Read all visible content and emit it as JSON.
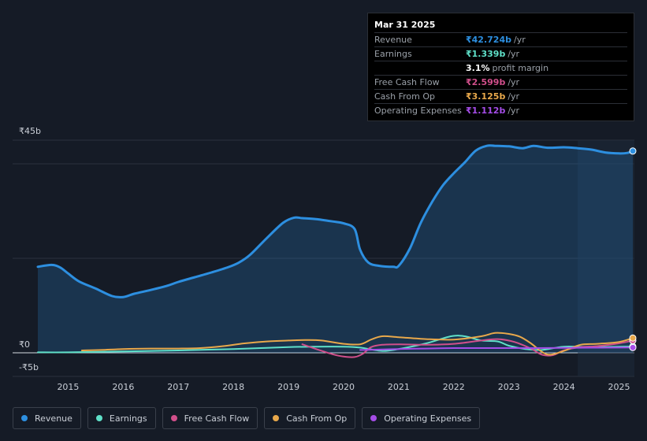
{
  "chart_data": {
    "type": "area",
    "y_unit_labels": [
      "₹45b",
      "₹0",
      "-₹5b"
    ],
    "ylim": [
      -5,
      45
    ],
    "xlim": [
      2014.45,
      2025.25
    ],
    "x_ticks": [
      "2015",
      "2016",
      "2017",
      "2018",
      "2019",
      "2020",
      "2021",
      "2022",
      "2023",
      "2024",
      "2025"
    ],
    "forecast_start": 2024.25,
    "series": [
      {
        "name": "Revenue",
        "color": "#2d8fe0",
        "fill": true,
        "x": [
          2014.45,
          2014.7,
          2014.85,
          2015.0,
          2015.2,
          2015.5,
          2015.8,
          2016.0,
          2016.2,
          2016.5,
          2016.8,
          2017.0,
          2017.3,
          2017.6,
          2017.9,
          2018.1,
          2018.3,
          2018.6,
          2018.9,
          2019.1,
          2019.25,
          2019.5,
          2019.8,
          2020.0,
          2020.2,
          2020.3,
          2020.45,
          2020.65,
          2020.9,
          2021.0,
          2021.2,
          2021.4,
          2021.6,
          2021.8,
          2022.0,
          2022.2,
          2022.4,
          2022.6,
          2022.75,
          2023.0,
          2023.25,
          2023.45,
          2023.7,
          2024.0,
          2024.25,
          2024.5,
          2024.75,
          2025.0,
          2025.15,
          2025.25
        ],
        "y": [
          18.2,
          18.6,
          18.1,
          16.8,
          15.1,
          13.6,
          12.0,
          11.8,
          12.5,
          13.3,
          14.2,
          15.0,
          16.0,
          17.0,
          18.1,
          19.1,
          20.7,
          24.2,
          27.5,
          28.6,
          28.5,
          28.3,
          27.8,
          27.4,
          26.2,
          21.8,
          19.1,
          18.4,
          18.2,
          18.4,
          22.0,
          27.5,
          31.8,
          35.4,
          38.0,
          40.3,
          42.8,
          43.8,
          43.8,
          43.7,
          43.3,
          43.8,
          43.4,
          43.5,
          43.3,
          43.0,
          42.4,
          42.2,
          42.3,
          42.7
        ]
      },
      {
        "name": "Earnings",
        "color": "#5fe0c8",
        "fill": false,
        "x": [
          2014.45,
          2015.0,
          2016.0,
          2017.0,
          2018.0,
          2019.0,
          2019.5,
          2020.0,
          2020.3,
          2020.7,
          2021.0,
          2021.5,
          2021.95,
          2022.2,
          2022.5,
          2022.8,
          2023.0,
          2023.3,
          2023.6,
          2024.0,
          2024.5,
          2025.0,
          2025.25
        ],
        "y": [
          0.1,
          0.1,
          0.3,
          0.5,
          0.8,
          1.2,
          1.3,
          1.3,
          1.1,
          0.4,
          0.8,
          2.0,
          3.5,
          3.5,
          2.6,
          2.4,
          1.5,
          0.8,
          0.6,
          1.3,
          1.2,
          1.3,
          1.339
        ]
      },
      {
        "name": "Free Cash Flow",
        "color": "#d14f8b",
        "fill": false,
        "x": [
          2019.25,
          2019.5,
          2019.8,
          2020.0,
          2020.2,
          2020.35,
          2020.5,
          2020.7,
          2021.0,
          2021.5,
          2022.0,
          2022.5,
          2022.8,
          2023.1,
          2023.4,
          2023.6,
          2023.8,
          2024.0,
          2024.3,
          2024.6,
          2025.0,
          2025.25
        ],
        "y": [
          1.8,
          0.8,
          -0.3,
          -0.8,
          -0.9,
          -0.2,
          1.2,
          1.7,
          1.8,
          1.7,
          1.9,
          2.6,
          2.9,
          2.3,
          0.9,
          -0.4,
          -0.5,
          0.5,
          1.2,
          1.4,
          2.0,
          2.599
        ]
      },
      {
        "name": "Cash From Op",
        "color": "#e8a84b",
        "fill": false,
        "x": [
          2015.25,
          2015.6,
          2016.0,
          2016.5,
          2017.0,
          2017.4,
          2017.8,
          2018.2,
          2018.6,
          2019.0,
          2019.3,
          2019.6,
          2020.0,
          2020.3,
          2020.5,
          2020.7,
          2021.0,
          2021.5,
          2022.0,
          2022.5,
          2022.75,
          2023.0,
          2023.2,
          2023.4,
          2023.6,
          2023.75,
          2024.0,
          2024.3,
          2024.6,
          2025.0,
          2025.25
        ],
        "y": [
          0.5,
          0.6,
          0.8,
          0.9,
          0.9,
          1.0,
          1.4,
          2.0,
          2.4,
          2.6,
          2.7,
          2.6,
          1.9,
          1.8,
          2.8,
          3.5,
          3.3,
          2.9,
          2.8,
          3.5,
          4.2,
          4.0,
          3.4,
          2.0,
          0.2,
          -0.4,
          0.4,
          1.7,
          1.9,
          2.3,
          3.125
        ]
      },
      {
        "name": "Operating Expenses",
        "color": "#a54de8",
        "fill": false,
        "x": [
          2020.3,
          2020.7,
          2021.0,
          2021.5,
          2022.0,
          2022.5,
          2023.0,
          2023.5,
          2024.0,
          2024.5,
          2025.0,
          2025.25
        ],
        "y": [
          0.6,
          0.7,
          0.8,
          0.9,
          1.0,
          1.0,
          1.0,
          1.0,
          1.05,
          1.08,
          1.1,
          1.112
        ]
      }
    ]
  },
  "tooltip": {
    "date": "Mar 31 2025",
    "rows": [
      {
        "label": "Revenue",
        "value": "₹42.724b",
        "unit": "/yr",
        "color": "#2d8fe0"
      },
      {
        "label": "Earnings",
        "value": "₹1.339b",
        "unit": "/yr",
        "color": "#5fe0c8"
      },
      {
        "label": "",
        "value": "3.1%",
        "unit": "profit margin",
        "color": "#ffffff"
      },
      {
        "label": "Free Cash Flow",
        "value": "₹2.599b",
        "unit": "/yr",
        "color": "#d14f8b"
      },
      {
        "label": "Cash From Op",
        "value": "₹3.125b",
        "unit": "/yr",
        "color": "#e8a84b"
      },
      {
        "label": "Operating Expenses",
        "value": "₹1.112b",
        "unit": "/yr",
        "color": "#a54de8"
      }
    ]
  },
  "legend": [
    {
      "label": "Revenue",
      "color": "#2d8fe0"
    },
    {
      "label": "Earnings",
      "color": "#5fe0c8"
    },
    {
      "label": "Free Cash Flow",
      "color": "#d14f8b"
    },
    {
      "label": "Cash From Op",
      "color": "#e8a84b"
    },
    {
      "label": "Operating Expenses",
      "color": "#a54de8"
    }
  ]
}
